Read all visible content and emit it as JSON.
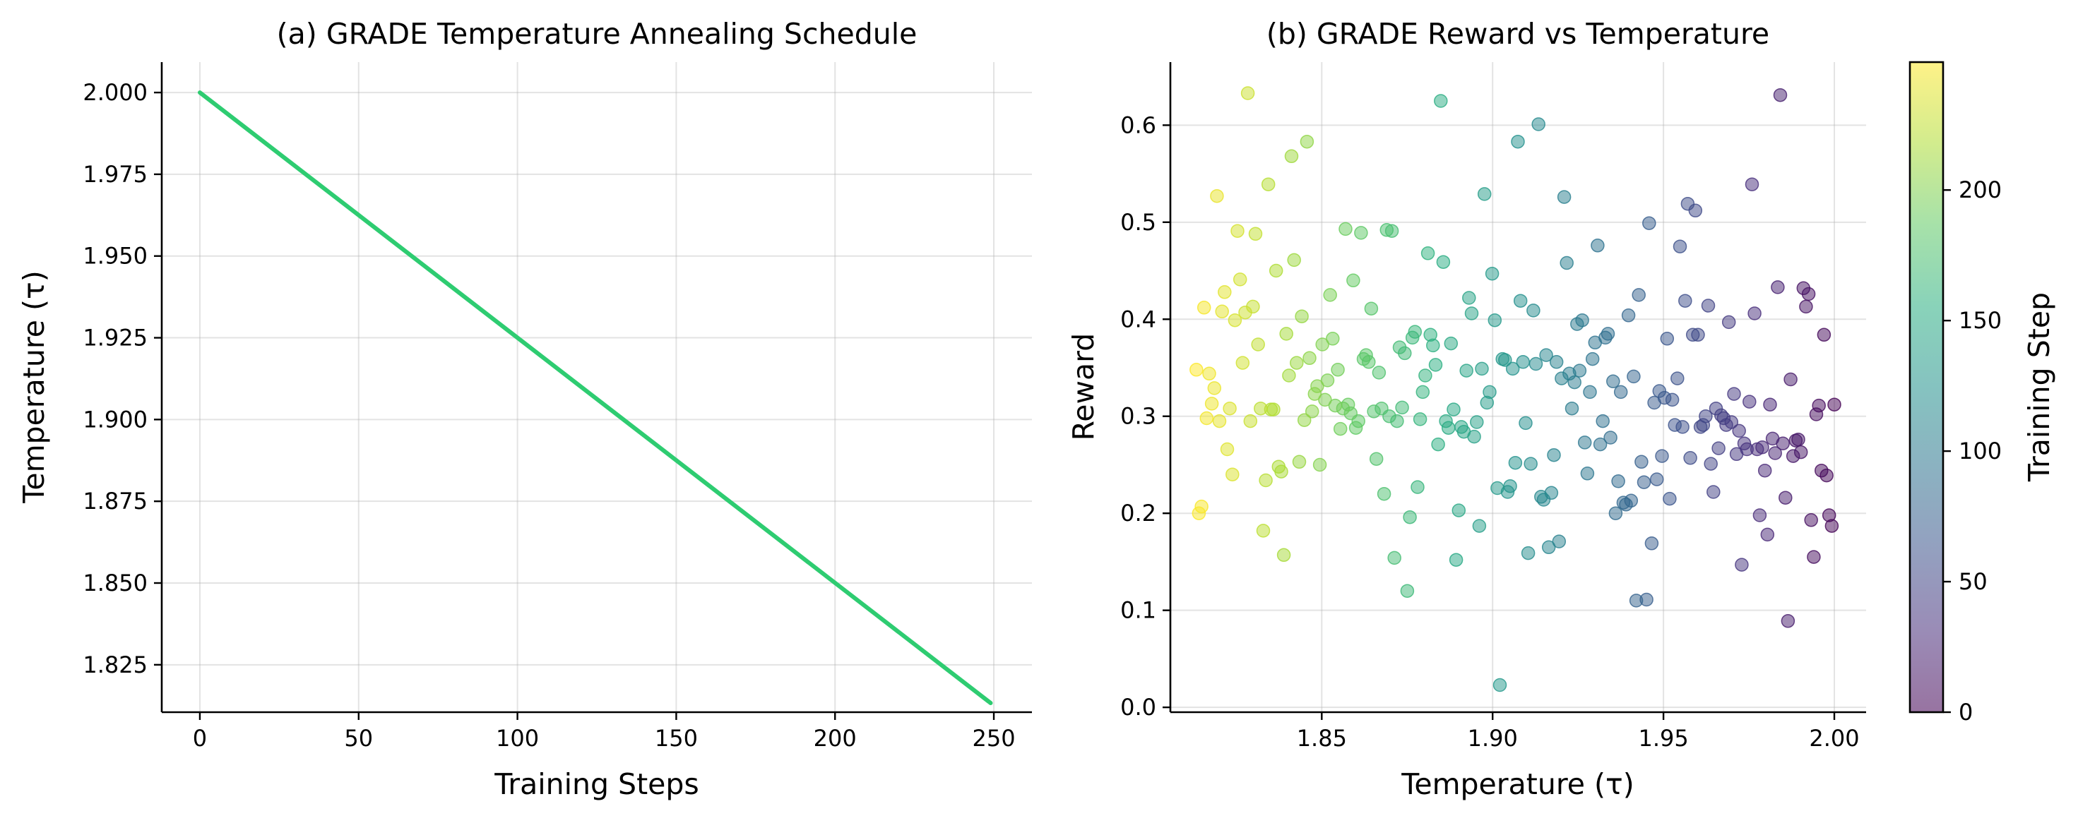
{
  "chart_data": [
    {
      "type": "line",
      "title": "(a) GRADE Temperature Annealing Schedule",
      "xlabel": "Training Steps",
      "ylabel": "Temperature (τ)",
      "xlim": [
        -12,
        262
      ],
      "ylim": [
        1.8105,
        2.0093
      ],
      "xticks": [
        0,
        50,
        100,
        150,
        200,
        250
      ],
      "yticks": [
        1.825,
        1.85,
        1.875,
        1.9,
        1.925,
        1.95,
        1.975,
        2.0
      ],
      "ytick_labels": [
        "1.825",
        "1.850",
        "1.875",
        "1.900",
        "1.925",
        "1.950",
        "1.975",
        "2.000"
      ],
      "grid": true,
      "series": [
        {
          "color": "#2ecc71",
          "x": [
            0,
            249
          ],
          "y": [
            2.0,
            1.8133
          ]
        }
      ]
    },
    {
      "type": "scatter",
      "title": "(b) GRADE Reward vs Temperature",
      "xlabel": "Temperature (τ)",
      "ylabel": "Reward",
      "xlim": [
        1.8057,
        2.0093
      ],
      "ylim": [
        -0.005,
        0.665
      ],
      "xticks": [
        1.85,
        1.9,
        1.95,
        2.0
      ],
      "xtick_labels": [
        "1.85",
        "1.90",
        "1.95",
        "2.00"
      ],
      "yticks": [
        0.0,
        0.1,
        0.2,
        0.3,
        0.4,
        0.5,
        0.6
      ],
      "ytick_labels": [
        "0.0",
        "0.1",
        "0.2",
        "0.3",
        "0.4",
        "0.5",
        "0.6"
      ],
      "grid": true,
      "colormap": "viridis",
      "point_alpha": 0.5,
      "colorbar": {
        "label": "Training Step",
        "range": [
          0,
          249
        ],
        "ticks": [
          0,
          50,
          100,
          150,
          200
        ],
        "tick_labels": [
          "0",
          "50",
          "100",
          "150",
          "200"
        ]
      },
      "steps": [
        0,
        249
      ],
      "temperature_range": [
        2.0,
        1.8133
      ],
      "rewards": [
        0.312,
        0.187,
        0.198,
        0.239,
        0.384,
        0.244,
        0.311,
        0.302,
        0.155,
        0.193,
        0.426,
        0.413,
        0.432,
        0.263,
        0.276,
        0.275,
        0.259,
        0.338,
        0.089,
        0.216,
        0.272,
        0.631,
        0.433,
        0.262,
        0.277,
        0.312,
        0.178,
        0.244,
        0.268,
        0.198,
        0.266,
        0.406,
        0.539,
        0.315,
        0.266,
        0.272,
        0.147,
        0.285,
        0.261,
        0.323,
        0.294,
        0.397,
        0.291,
        0.298,
        0.301,
        0.267,
        0.308,
        0.222,
        0.251,
        0.414,
        0.3,
        0.291,
        0.289,
        0.384,
        0.512,
        0.384,
        0.257,
        0.519,
        0.419,
        0.289,
        0.475,
        0.339,
        0.291,
        0.317,
        0.215,
        0.38,
        0.319,
        0.259,
        0.326,
        0.235,
        0.314,
        0.169,
        0.499,
        0.111,
        0.232,
        0.253,
        0.425,
        0.11,
        0.341,
        0.213,
        0.404,
        0.209,
        0.211,
        0.325,
        0.233,
        0.2,
        0.336,
        0.278,
        0.385,
        0.381,
        0.295,
        0.271,
        0.476,
        0.376,
        0.359,
        0.325,
        0.241,
        0.273,
        0.399,
        0.347,
        0.395,
        0.335,
        0.308,
        0.344,
        0.458,
        0.526,
        0.339,
        0.171,
        0.356,
        0.26,
        0.221,
        0.165,
        0.363,
        0.214,
        0.217,
        0.601,
        0.354,
        0.409,
        0.251,
        0.159,
        0.293,
        0.356,
        0.419,
        0.583,
        0.252,
        0.349,
        0.228,
        0.222,
        0.358,
        0.359,
        0.023,
        0.226,
        0.399,
        0.447,
        0.325,
        0.314,
        0.529,
        0.349,
        0.187,
        0.294,
        0.279,
        0.406,
        0.422,
        0.347,
        0.284,
        0.289,
        0.203,
        0.152,
        0.307,
        0.375,
        0.288,
        0.295,
        0.459,
        0.625,
        0.271,
        0.353,
        0.373,
        0.384,
        0.468,
        0.342,
        0.325,
        0.297,
        0.227,
        0.387,
        0.381,
        0.196,
        0.12,
        0.365,
        0.309,
        0.371,
        0.295,
        0.154,
        0.491,
        0.3,
        0.492,
        0.22,
        0.308,
        0.345,
        0.256,
        0.305,
        0.411,
        0.356,
        0.363,
        0.359,
        0.489,
        0.295,
        0.288,
        0.44,
        0.303,
        0.312,
        0.493,
        0.308,
        0.287,
        0.348,
        0.311,
        0.38,
        0.425,
        0.337,
        0.317,
        0.374,
        0.25,
        0.331,
        0.323,
        0.305,
        0.36,
        0.583,
        0.296,
        0.403,
        0.253,
        0.355,
        0.461,
        0.568,
        0.342,
        0.385,
        0.157,
        0.243,
        0.248,
        0.45,
        0.307,
        0.307,
        0.539,
        0.234,
        0.182,
        0.308,
        0.374,
        0.488,
        0.413,
        0.295,
        0.633,
        0.407,
        0.355,
        0.441,
        0.491,
        0.399,
        0.24,
        0.308,
        0.266,
        0.428,
        0.408,
        0.295,
        0.527,
        0.329,
        0.313,
        0.344,
        0.298,
        0.412,
        0.207,
        0.2,
        0.348
      ]
    }
  ]
}
